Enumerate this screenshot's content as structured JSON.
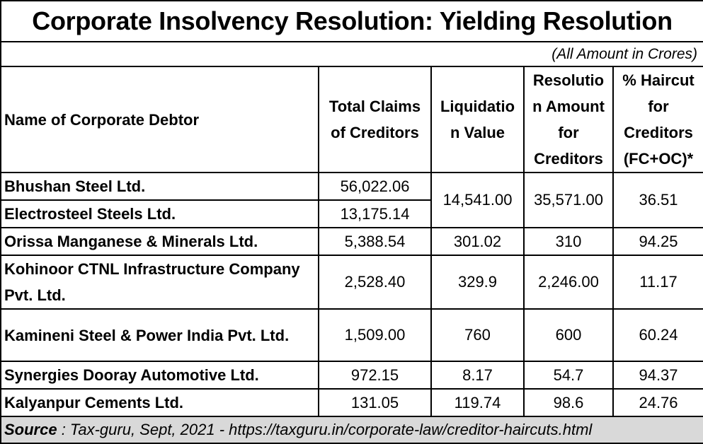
{
  "title": "Corporate Insolvency Resolution: Yielding Resolution",
  "unit_note": "(All Amount in Crores)",
  "headers": {
    "name": "Name of Corporate Debtor",
    "total_claims": "Total Claims of Creditors",
    "liquidation": "Liquidatio n Value",
    "resolution": "Resolutio n Amount for Creditors",
    "haircut": "% Haircut for Creditors (FC+OC)*"
  },
  "rows": [
    {
      "name": "Bhushan Steel Ltd.",
      "total_claims": "56,022.06",
      "liquidation": "14,541.00",
      "resolution": "35,571.00",
      "haircut": "36.51"
    },
    {
      "name": "Electrosteel Steels Ltd.",
      "total_claims": "13,175.14"
    },
    {
      "name": "Orissa Manganese & Minerals Ltd.",
      "total_claims": "5,388.54",
      "liquidation": "301.02",
      "resolution": "310",
      "haircut": "94.25"
    },
    {
      "name": "Kohinoor CTNL Infrastructure Company Pvt. Ltd.",
      "total_claims": "2,528.40",
      "liquidation": "329.9",
      "resolution": "2,246.00",
      "haircut": "11.17"
    },
    {
      "name": "Kamineni Steel & Power India Pvt. Ltd.",
      "total_claims": "1,509.00",
      "liquidation": "760",
      "resolution": "600",
      "haircut": "60.24"
    },
    {
      "name": "Synergies Dooray Automotive Ltd.",
      "total_claims": "972.15",
      "liquidation": "8.17",
      "resolution": "54.7",
      "haircut": "94.37"
    },
    {
      "name": "Kalyanpur Cements Ltd.",
      "total_claims": "131.05",
      "liquidation": "119.74",
      "resolution": "98.6",
      "haircut": "24.76"
    }
  ],
  "source": {
    "label": "Source",
    "text": " : Tax-guru, Sept, 2021 - https://taxguru.in/corporate-law/creditor-haircuts.html"
  }
}
